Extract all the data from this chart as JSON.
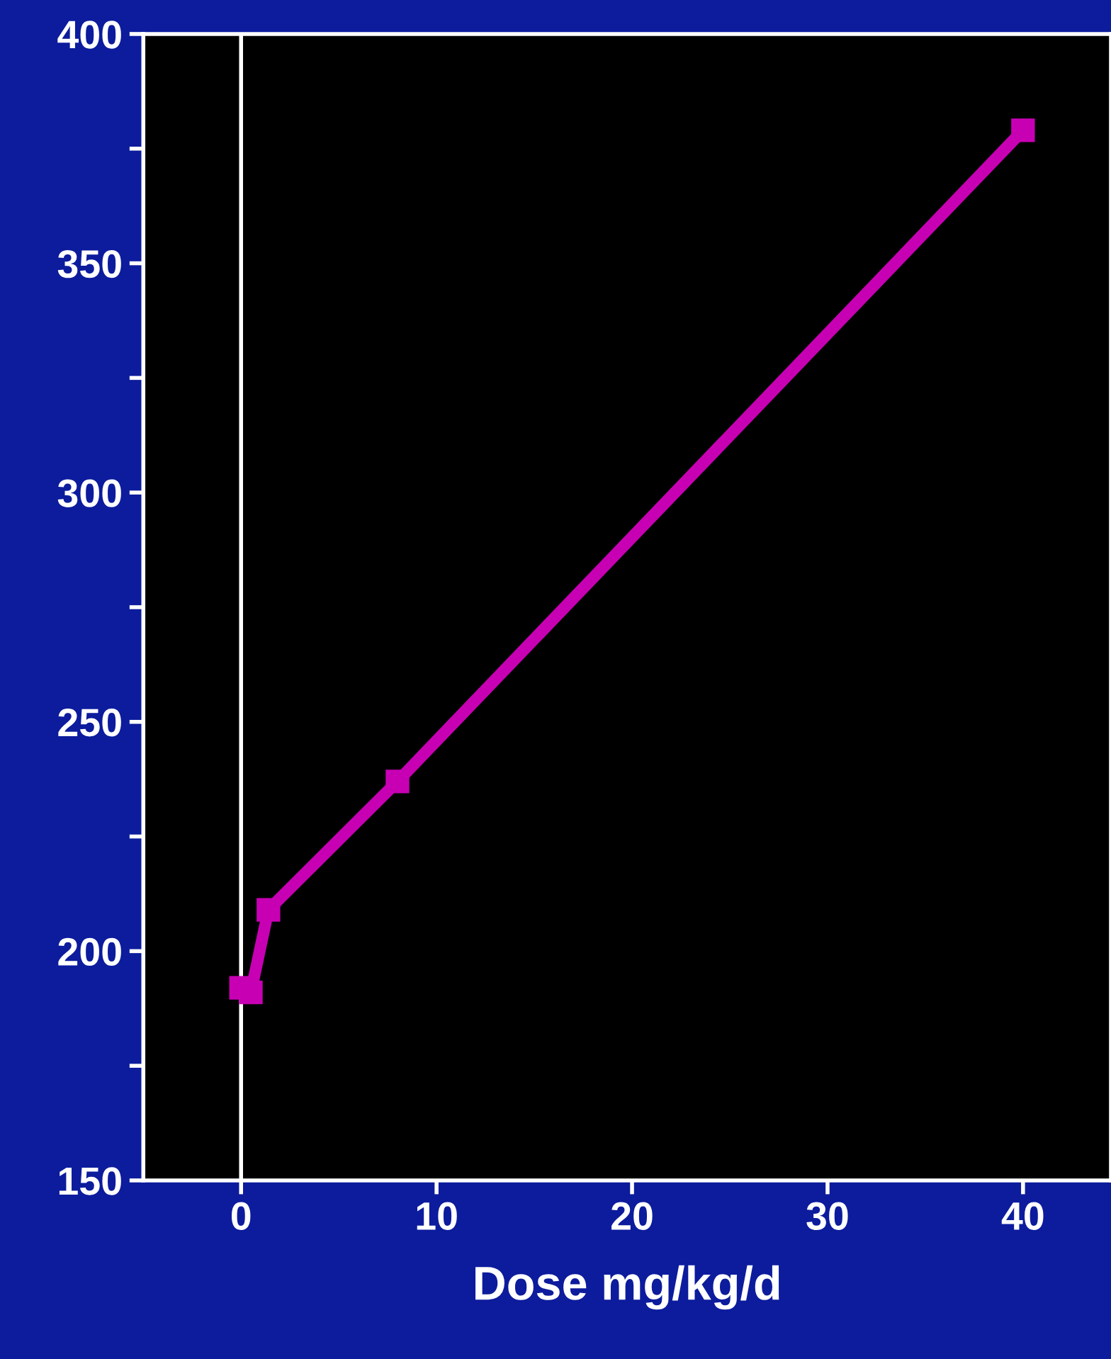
{
  "chart_data": {
    "type": "line",
    "xlabel": "Dose mg/kg/d",
    "series": [
      {
        "color": "#c800b4",
        "x": [
          0,
          0.5,
          1.4,
          8,
          40
        ],
        "values": [
          192,
          191,
          209,
          237,
          379
        ]
      }
    ],
    "xlim": [
      -5,
      44.5
    ],
    "xticks": [
      0,
      10,
      20,
      30,
      40
    ],
    "ylim": [
      150,
      400
    ],
    "yticks": [
      150,
      {
        "value": 175,
        "label": null
      },
      200,
      {
        "value": 225,
        "label": null
      },
      250,
      {
        "value": 275,
        "label": null
      },
      300,
      {
        "value": 325,
        "label": null
      },
      350,
      {
        "value": 375,
        "label": null
      },
      400
    ],
    "ref_lines": [
      {
        "axis": "x",
        "value": 0,
        "color": "#ffffff"
      }
    ],
    "marker": "square",
    "line_style": "solid",
    "grid": false,
    "legend": false
  }
}
